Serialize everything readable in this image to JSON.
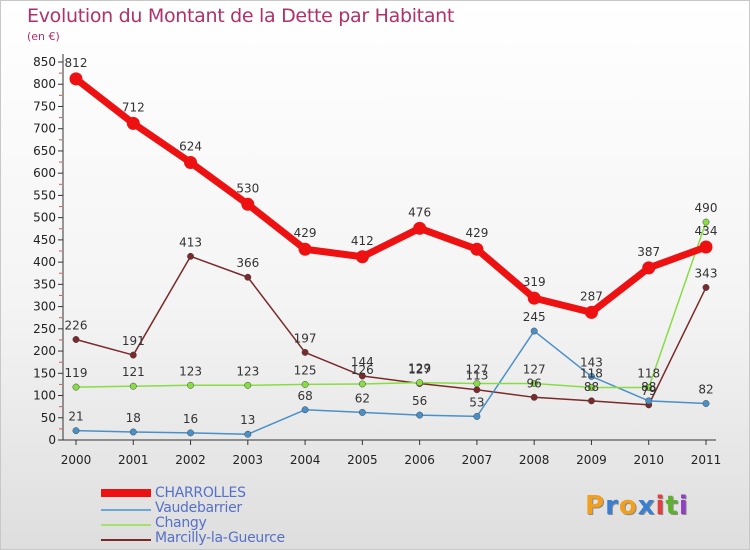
{
  "chart_data": {
    "type": "line",
    "title": "Evolution du Montant de la Dette par Habitant",
    "unit": "(en €)",
    "x": [
      "2000",
      "2001",
      "2002",
      "2003",
      "2004",
      "2005",
      "2006",
      "2007",
      "2008",
      "2009",
      "2010",
      "2011"
    ],
    "ylim": [
      0,
      850
    ],
    "yticks": [
      0,
      50,
      100,
      150,
      200,
      250,
      300,
      350,
      400,
      450,
      500,
      550,
      600,
      650,
      700,
      750,
      800,
      850
    ],
    "grid": false,
    "legend_position": "bottom-left",
    "series": [
      {
        "name": "CHARROLLES",
        "color": "#ee1111",
        "values": [
          812,
          712,
          624,
          530,
          429,
          412,
          476,
          429,
          319,
          287,
          387,
          434
        ],
        "label_values": [
          "812",
          "712",
          "624",
          "530",
          "429",
          "412",
          "476",
          "429",
          "319",
          "287",
          "387",
          "434"
        ]
      },
      {
        "name": "Vaudebarrier",
        "color": "#4a90c8",
        "values": [
          21,
          18,
          16,
          13,
          68,
          62,
          56,
          53,
          245,
          143,
          88,
          82
        ],
        "label_values": [
          "21",
          "18",
          "16",
          "13",
          "68",
          "62",
          "56",
          "53",
          "245",
          "143",
          "88",
          "82"
        ]
      },
      {
        "name": "Changy",
        "color": "#88dd44",
        "values": [
          119,
          121,
          123,
          123,
          125,
          126,
          129,
          127,
          127,
          118,
          118,
          490
        ],
        "label_values": [
          "119",
          "121",
          "123",
          "123",
          "125",
          "126",
          "129",
          "127",
          "127",
          "118",
          "118",
          "490"
        ]
      },
      {
        "name": "Marcilly-la-Gueurce",
        "color": "#7a2a2a",
        "values": [
          226,
          191,
          413,
          366,
          197,
          144,
          127,
          113,
          96,
          88,
          79,
          343
        ],
        "label_values": [
          "226",
          "191",
          "413",
          "366",
          "197",
          "144",
          "127",
          "113",
          "96",
          "88",
          "79",
          "343"
        ]
      }
    ]
  },
  "legend": {
    "items": [
      {
        "label": "CHARROLLES",
        "color": "#ee1111"
      },
      {
        "label": "Vaudebarrier",
        "color": "#6aa8d8"
      },
      {
        "label": "Changy",
        "color": "#a8e070"
      },
      {
        "label": "Marcilly-la-Gueurce",
        "color": "#7a2a2a"
      }
    ]
  },
  "brand": {
    "letters": [
      "P",
      "r",
      "o",
      "x",
      "i",
      "t",
      "i"
    ],
    "colors": [
      "#f0a020",
      "#3a7fd0",
      "#f0a020",
      "#3a7fd0",
      "#e04040",
      "#60b030",
      "#9040c0"
    ]
  }
}
